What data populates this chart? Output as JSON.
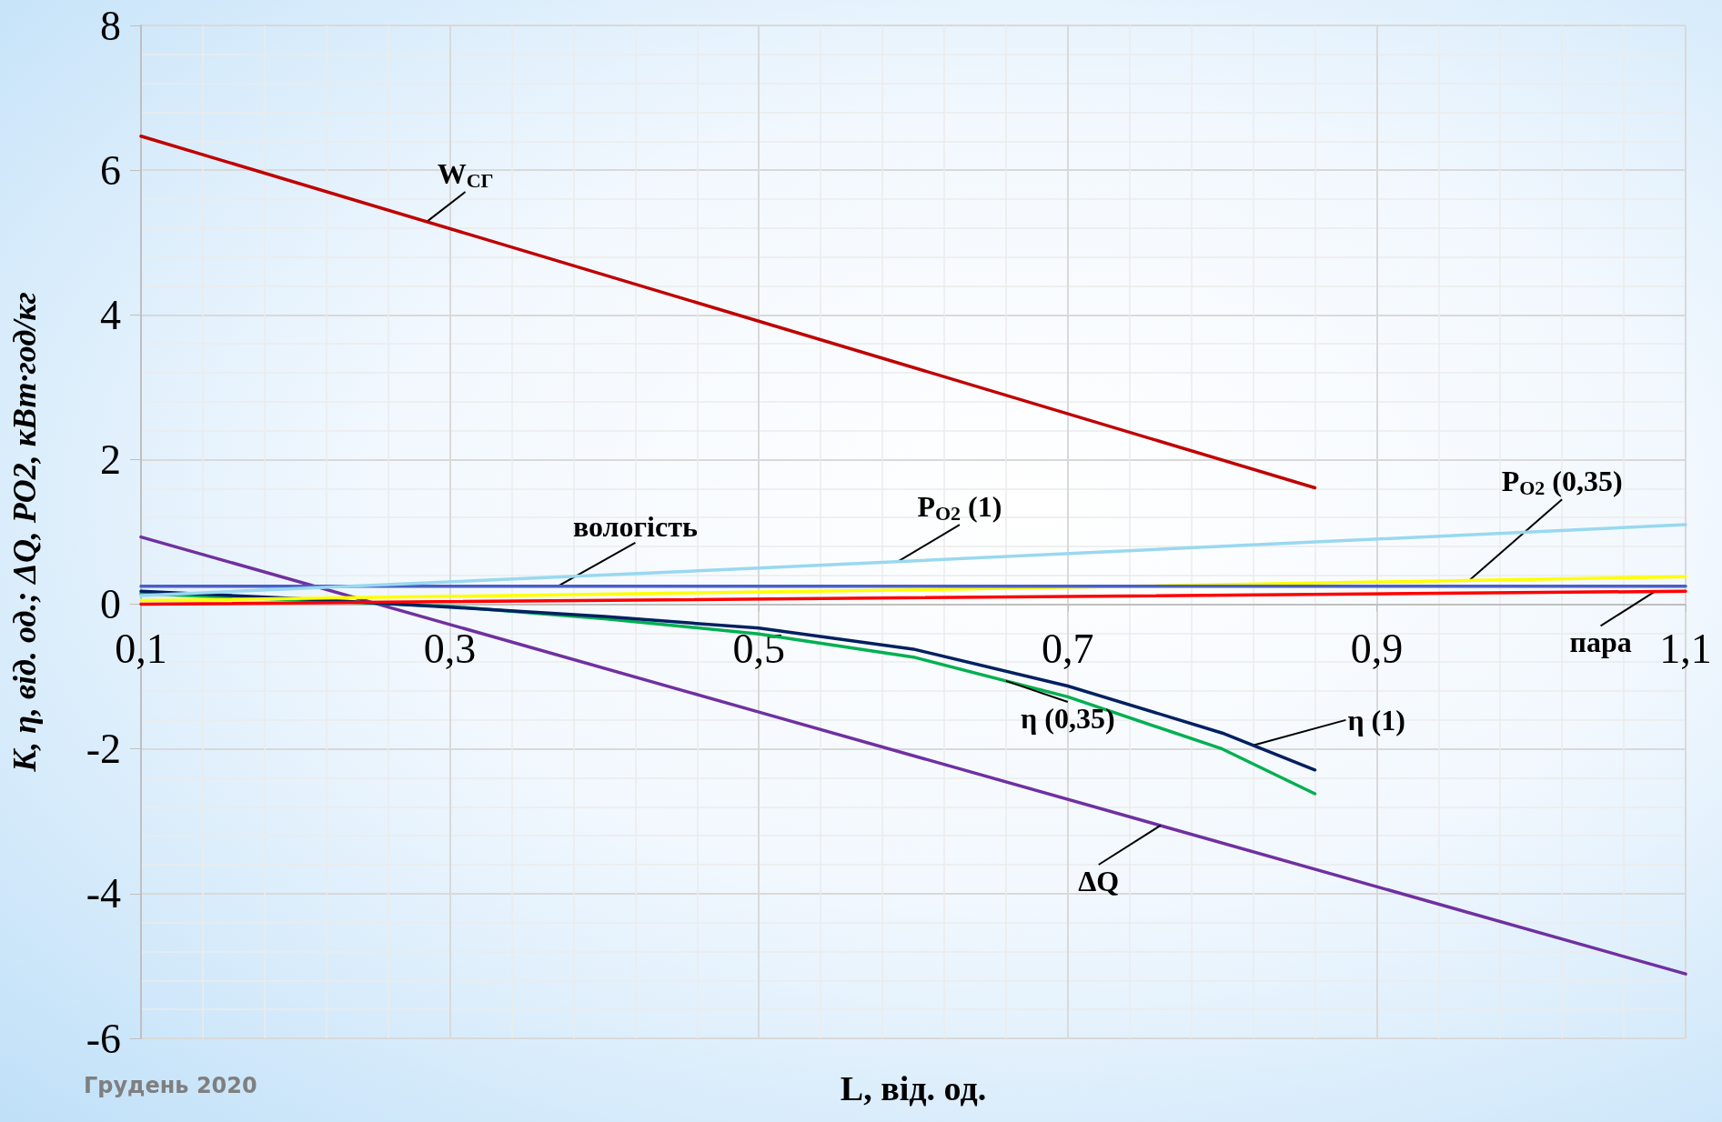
{
  "chart_data": {
    "type": "line",
    "xlabel": "L, від. од.",
    "ylabel": "K, η, від. од.; ΔQ, PO2, кВт·год/кг",
    "xlim": [
      0.1,
      1.1
    ],
    "xticks": [
      {
        "value": 0.1,
        "label": "0,1"
      },
      {
        "value": 0.3,
        "label": "0,3"
      },
      {
        "value": 0.5,
        "label": "0,5"
      },
      {
        "value": 0.7,
        "label": "0,7"
      },
      {
        "value": 0.9,
        "label": "0,9"
      },
      {
        "value": 1.1,
        "label": "1,1"
      }
    ],
    "ylim": [
      -6,
      8
    ],
    "yticks": [
      -6,
      -4,
      -2,
      0,
      2,
      4,
      6,
      8
    ],
    "grid": true,
    "legend": false,
    "marker": "none",
    "line_style": "solid",
    "series": [
      {
        "name": "W$_{СГ}$",
        "color": "#c00000",
        "x": [
          0.1,
          0.86
        ],
        "values": [
          6.47,
          1.61
        ]
      },
      {
        "name": "P$_{O2}$ (1)",
        "color": "#99d8f0",
        "x": [
          0.1,
          0.5,
          1.1
        ],
        "values": [
          0.12,
          0.5,
          1.1
        ]
      },
      {
        "name": "вологість",
        "color": "#4a5fc8",
        "x": [
          0.1,
          1.1
        ],
        "values": [
          0.25,
          0.25
        ]
      },
      {
        "name": "P$_{O2}$ (0,35)",
        "color": "#ffff00",
        "x": [
          0.1,
          0.6,
          1.1
        ],
        "values": [
          0.05,
          0.2,
          0.38
        ]
      },
      {
        "name": "пара",
        "color": "#ff0000",
        "x": [
          0.1,
          1.1
        ],
        "values": [
          0.0,
          0.18
        ]
      },
      {
        "name": "η (1)",
        "color": "#002060",
        "x": [
          0.1,
          0.2,
          0.3,
          0.4,
          0.5,
          0.6,
          0.7,
          0.8,
          0.86
        ],
        "values": [
          0.18,
          0.08,
          -0.04,
          -0.17,
          -0.33,
          -0.62,
          -1.13,
          -1.78,
          -2.29
        ]
      },
      {
        "name": "η (0,35)",
        "color": "#00b050",
        "x": [
          0.1,
          0.2,
          0.3,
          0.4,
          0.5,
          0.6,
          0.7,
          0.8,
          0.86
        ],
        "values": [
          0.15,
          0.06,
          -0.03,
          -0.2,
          -0.41,
          -0.73,
          -1.28,
          -2.0,
          -2.62
        ]
      },
      {
        "name": "ΔQ",
        "color": "#7030a0",
        "x": [
          0.1,
          0.5,
          1.1
        ],
        "values": [
          0.93,
          -1.49,
          -5.11
        ]
      }
    ],
    "annotations": [
      "Грудень 2020"
    ]
  }
}
